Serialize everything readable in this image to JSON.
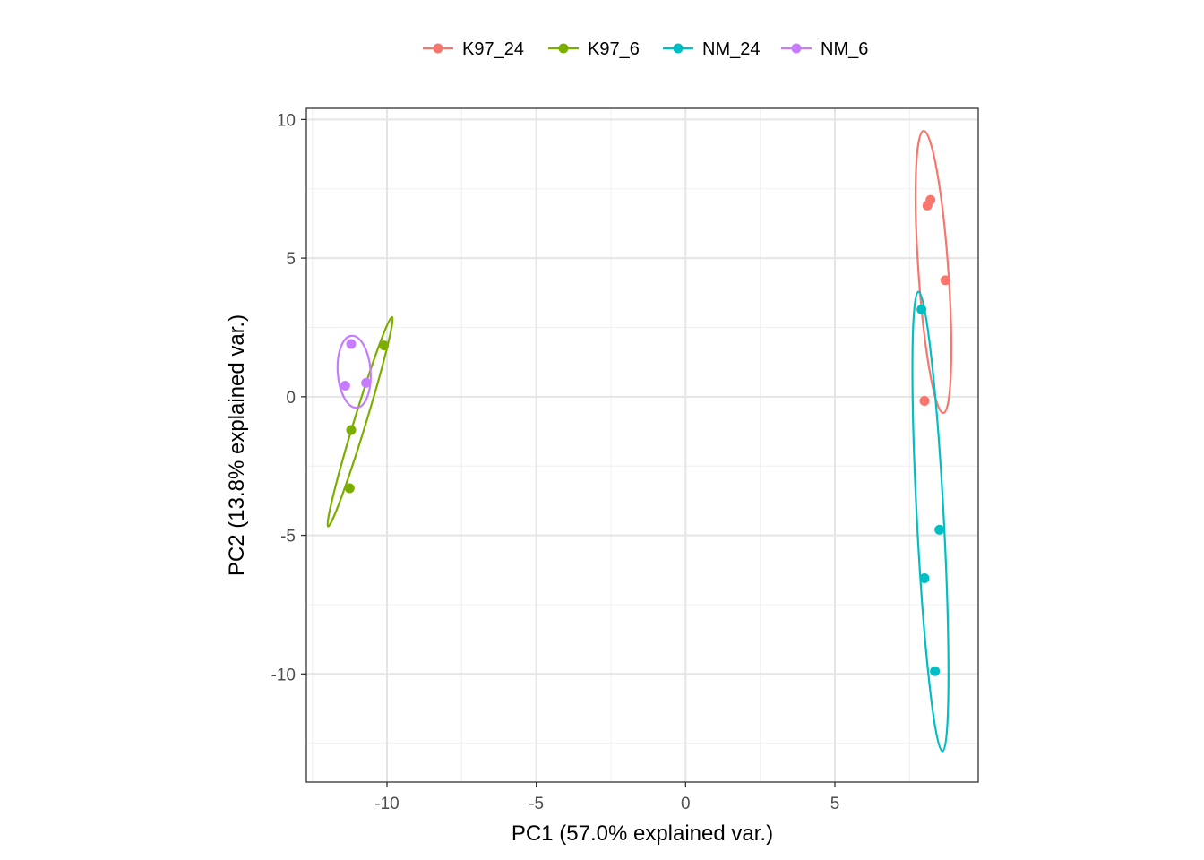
{
  "chart_data": {
    "type": "scatter",
    "title": "",
    "xlabel": "PC1 (57.0% explained var.)",
    "ylabel": "PC2 (13.8% explained var.)",
    "xlim": [
      -12.7,
      9.8
    ],
    "ylim": [
      -13.9,
      10.4
    ],
    "x_ticks": [
      -10,
      -5,
      0,
      5
    ],
    "y_ticks": [
      10,
      5,
      0,
      -5,
      -10
    ],
    "x_tick_labels": [
      "-10",
      "-5",
      "0",
      "5"
    ],
    "y_tick_labels": [
      "10",
      "5",
      "0",
      "-5",
      "-10"
    ],
    "grid": true,
    "legend_position": "top",
    "series": [
      {
        "name": "K97_24",
        "color": "#F8766D",
        "points": [
          [
            8.2,
            7.1
          ],
          [
            8.1,
            6.9
          ],
          [
            8.7,
            4.2
          ],
          [
            8.0,
            -0.15
          ]
        ],
        "ellipse": {
          "cx": 8.3,
          "cy": 4.5,
          "rx": 0.5,
          "ry": 5.1,
          "rotation_deg": -4
        }
      },
      {
        "name": "K97_6",
        "color": "#7CAE00",
        "points": [
          [
            -10.1,
            1.85
          ],
          [
            -11.2,
            -1.2
          ],
          [
            -11.25,
            -3.3
          ]
        ],
        "ellipse": {
          "cx": -10.9,
          "cy": -0.9,
          "rx": 0.2,
          "ry": 3.95,
          "rotation_deg": 17
        }
      },
      {
        "name": "NM_24",
        "color": "#00BFC4",
        "points": [
          [
            7.9,
            3.15
          ],
          [
            8.5,
            -4.8
          ],
          [
            8.0,
            -6.55
          ],
          [
            8.35,
            -9.9
          ]
        ],
        "ellipse": {
          "cx": 8.2,
          "cy": -4.5,
          "rx": 0.45,
          "ry": 8.3,
          "rotation_deg": -3
        }
      },
      {
        "name": "NM_6",
        "color": "#C77CFF",
        "points": [
          [
            -11.2,
            1.9
          ],
          [
            -11.4,
            0.4
          ],
          [
            -10.7,
            0.5
          ]
        ],
        "ellipse": {
          "cx": -11.1,
          "cy": 0.9,
          "rx": 0.55,
          "ry": 1.3,
          "rotation_deg": -4
        }
      }
    ]
  }
}
